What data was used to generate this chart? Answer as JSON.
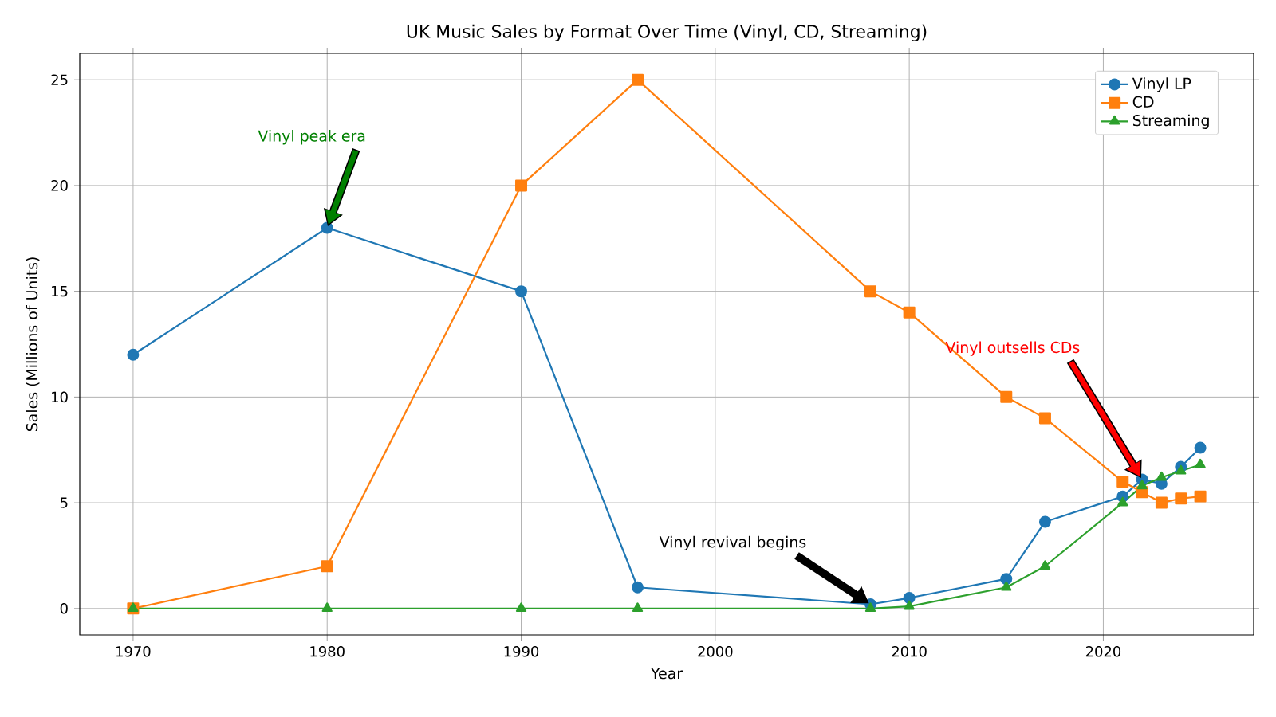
{
  "chart_data": {
    "type": "line",
    "title": "UK Music Sales by Format Over Time (Vinyl, CD, Streaming)",
    "xlabel": "Year",
    "ylabel": "Sales (Millions of Units)",
    "x": [
      1970,
      1980,
      1990,
      1996,
      2008,
      2010,
      2015,
      2017,
      2021,
      2022,
      2023,
      2024,
      2025
    ],
    "series": [
      {
        "name": "Vinyl LP",
        "color": "#1f77b4",
        "marker": "circle",
        "values": [
          12,
          18,
          15,
          1,
          0.2,
          0.5,
          1.4,
          4.1,
          5.3,
          6.1,
          5.9,
          6.7,
          7.6
        ]
      },
      {
        "name": "CD",
        "color": "#ff7f0e",
        "marker": "square",
        "values": [
          0,
          2,
          20,
          25,
          15,
          14,
          10,
          9,
          6,
          5.5,
          5,
          5.2,
          5.3
        ]
      },
      {
        "name": "Streaming",
        "color": "#2ca02c",
        "marker": "triangle",
        "values": [
          0,
          0,
          0,
          0,
          0,
          0.1,
          1,
          2,
          5,
          5.8,
          6.2,
          6.5,
          6.8
        ]
      }
    ],
    "xlim": [
      1967.25,
      2027.75
    ],
    "ylim": [
      -1.25,
      26.25
    ],
    "xticks": [
      1970,
      1980,
      1990,
      2000,
      2010,
      2020
    ],
    "yticks": [
      0,
      5,
      10,
      15,
      20,
      25
    ],
    "annotations": [
      "Vinyl peak era",
      "Vinyl revival begins",
      "Vinyl outsells CDs"
    ],
    "grid": true,
    "legend": "top right",
    "line_style": "solid"
  }
}
